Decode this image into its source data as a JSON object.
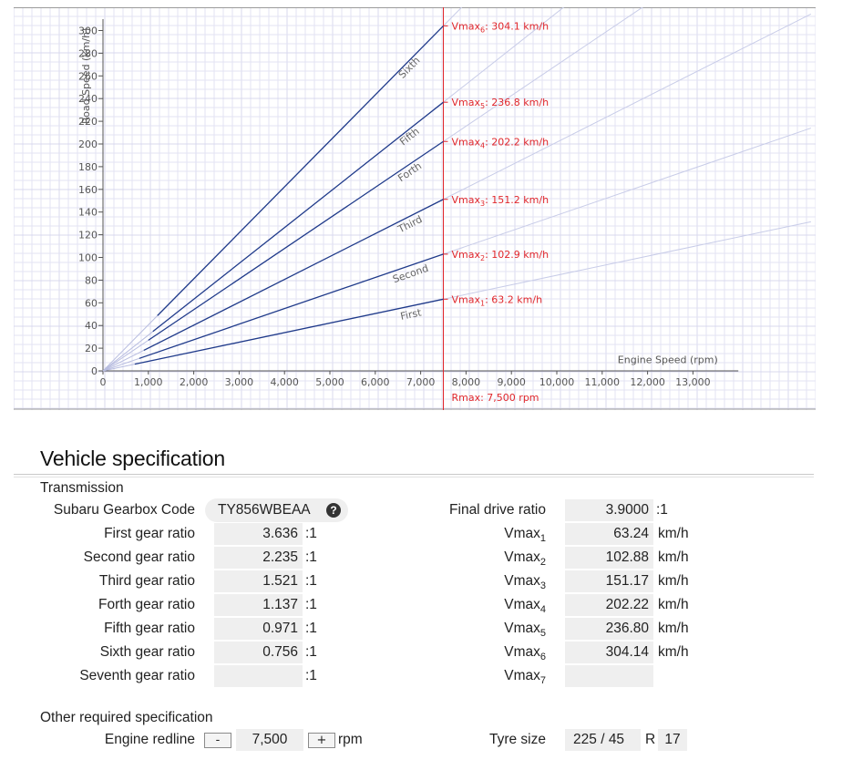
{
  "chart_data": {
    "type": "line",
    "xlabel": "Engine Speed (rpm)",
    "ylabel": "Road Speed (km/h)",
    "xlim": [
      0,
      14000
    ],
    "ylim": [
      0,
      310
    ],
    "x_ticks": [
      "0",
      "1,000",
      "2,000",
      "3,000",
      "4,000",
      "5,000",
      "6,000",
      "7,000",
      "8,000",
      "9,000",
      "10,000",
      "11,000",
      "12,000",
      "13,000"
    ],
    "y_ticks": [
      "0",
      "20",
      "40",
      "60",
      "80",
      "100",
      "120",
      "140",
      "160",
      "180",
      "200",
      "220",
      "240",
      "260",
      "280",
      "300"
    ],
    "redline": {
      "x": 7500,
      "label": "Rmax: 7,500 rpm"
    },
    "series": [
      {
        "name": "First",
        "x": [
          700,
          7500
        ],
        "y": [
          5.9,
          63.2
        ]
      },
      {
        "name": "Second",
        "x": [
          800,
          7500
        ],
        "y": [
          11.0,
          102.9
        ]
      },
      {
        "name": "Third",
        "x": [
          900,
          7500
        ],
        "y": [
          18.1,
          151.2
        ]
      },
      {
        "name": "Forth",
        "x": [
          1000,
          7500
        ],
        "y": [
          27.0,
          202.2
        ]
      },
      {
        "name": "Fifth",
        "x": [
          1100,
          7500
        ],
        "y": [
          34.7,
          236.8
        ]
      },
      {
        "name": "Sixth",
        "x": [
          1200,
          7500
        ],
        "y": [
          48.7,
          304.1
        ]
      }
    ],
    "annotations": [
      {
        "pre": "Vmax",
        "sub": "1",
        "post": ": 63.2 km/h",
        "y": 63.2
      },
      {
        "pre": "Vmax",
        "sub": "2",
        "post": ": 102.9 km/h",
        "y": 102.9
      },
      {
        "pre": "Vmax",
        "sub": "3",
        "post": ": 151.2 km/h",
        "y": 151.2
      },
      {
        "pre": "Vmax",
        "sub": "4",
        "post": ": 202.2 km/h",
        "y": 202.2
      },
      {
        "pre": "Vmax",
        "sub": "5",
        "post": ": 236.8 km/h",
        "y": 236.8
      },
      {
        "pre": "Vmax",
        "sub": "6",
        "post": ": 304.1 km/h",
        "y": 304.1
      }
    ],
    "grid": true,
    "colors": {
      "gear_line": "#1f3a8a",
      "redline": "#e0262b",
      "grid": "#e3e3f3",
      "ext_line": "#c8cce8"
    }
  },
  "spec": {
    "title": "Vehicle specification",
    "transmission_heading": "Transmission",
    "gearbox_code_label": "Subaru Gearbox Code",
    "gearbox_code": "TY856WBEAA",
    "help_icon": "?",
    "ratio_unit": ":1",
    "speed_unit": "km/h",
    "gears": [
      {
        "label": "First gear ratio",
        "value": "3.636"
      },
      {
        "label": "Second gear ratio",
        "value": "2.235"
      },
      {
        "label": "Third gear ratio",
        "value": "1.521"
      },
      {
        "label": "Forth gear ratio",
        "value": "1.137"
      },
      {
        "label": "Fifth gear ratio",
        "value": "0.971"
      },
      {
        "label": "Sixth gear ratio",
        "value": "0.756"
      },
      {
        "label": "Seventh gear ratio",
        "value": ""
      }
    ],
    "final_drive_label": "Final drive ratio",
    "final_drive": "3.9000",
    "vmax_label": "Vmax",
    "vmax": [
      {
        "sub": "1",
        "value": "63.24"
      },
      {
        "sub": "2",
        "value": "102.88"
      },
      {
        "sub": "3",
        "value": "151.17"
      },
      {
        "sub": "4",
        "value": "202.22"
      },
      {
        "sub": "5",
        "value": "236.80"
      },
      {
        "sub": "6",
        "value": "304.14"
      },
      {
        "sub": "7",
        "value": ""
      }
    ],
    "other_heading": "Other required specification",
    "redline_label": "Engine redline",
    "redline_minus": "-",
    "redline_value": "7,500",
    "redline_plus": "+",
    "redline_unit": "rpm",
    "tyre_label": "Tyre size",
    "tyre_width": "225",
    "tyre_sep": "/",
    "tyre_profile": "45",
    "tyre_r": "R",
    "tyre_rim": "17"
  }
}
